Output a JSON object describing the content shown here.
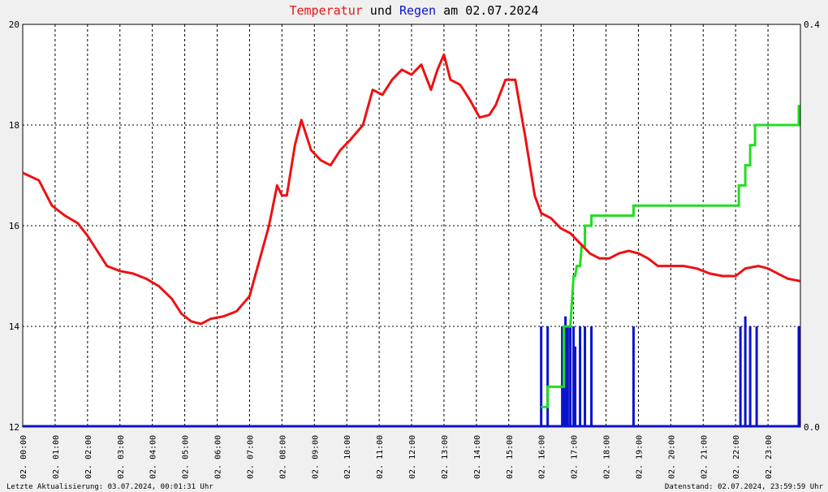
{
  "title": {
    "part1": "Temperatur",
    "part2": " und ",
    "part3": "Regen",
    "part4": " am 02.07.2024"
  },
  "colors": {
    "temperature": "#ee1111",
    "rain": "#0a14cc",
    "rain_cumulative": "#22dd22",
    "title_dark": "#000000",
    "frame": "#000000",
    "background": "#f0f0f0",
    "plot_bg": "#ffffff"
  },
  "footer": {
    "left": "Letzte Aktualisierung: 03.07.2024, 00:01:31 Uhr",
    "right": "Datenstand: 02.07.2024, 23:59:59 Uhr"
  },
  "chart_data": {
    "type": "line",
    "title": "Temperatur und Regen am 02.07.2024",
    "grid": true,
    "x_ticks": [
      "02. 00:00",
      "02. 01:00",
      "02. 02:00",
      "02. 03:00",
      "02. 04:00",
      "02. 05:00",
      "02. 06:00",
      "02. 07:00",
      "02. 08:00",
      "02. 09:00",
      "02. 10:00",
      "02. 11:00",
      "02. 12:00",
      "02. 13:00",
      "02. 14:00",
      "02. 15:00",
      "02. 16:00",
      "02. 17:00",
      "02. 18:00",
      "02. 19:00",
      "02. 20:00",
      "02. 21:00",
      "02. 22:00",
      "02. 23:00"
    ],
    "x_range_hours": [
      0,
      24
    ],
    "y_left": {
      "range": [
        12,
        20
      ],
      "ticks": [
        "12",
        "14",
        "16",
        "18",
        "20"
      ]
    },
    "y_right": {
      "range": [
        0,
        0.4
      ],
      "ticks": [
        "0.0",
        "0.4"
      ]
    },
    "series": [
      {
        "axis": "left",
        "style": "line",
        "points": [
          [
            0,
            17.05
          ],
          [
            0.5,
            16.9
          ],
          [
            0.9,
            16.4
          ],
          [
            1.3,
            16.2
          ],
          [
            1.7,
            16.05
          ],
          [
            2.0,
            15.8
          ],
          [
            2.3,
            15.5
          ],
          [
            2.6,
            15.2
          ],
          [
            3.0,
            15.1
          ],
          [
            3.4,
            15.05
          ],
          [
            3.8,
            14.95
          ],
          [
            4.2,
            14.8
          ],
          [
            4.6,
            14.55
          ],
          [
            4.9,
            14.25
          ],
          [
            5.2,
            14.1
          ],
          [
            5.5,
            14.05
          ],
          [
            5.8,
            14.15
          ],
          [
            6.2,
            14.2
          ],
          [
            6.6,
            14.3
          ],
          [
            7.0,
            14.6
          ],
          [
            7.3,
            15.3
          ],
          [
            7.6,
            16.0
          ],
          [
            7.85,
            16.8
          ],
          [
            8.0,
            16.6
          ],
          [
            8.15,
            16.6
          ],
          [
            8.4,
            17.6
          ],
          [
            8.6,
            18.1
          ],
          [
            8.9,
            17.5
          ],
          [
            9.2,
            17.3
          ],
          [
            9.5,
            17.2
          ],
          [
            9.8,
            17.5
          ],
          [
            10.1,
            17.7
          ],
          [
            10.5,
            18.0
          ],
          [
            10.8,
            18.7
          ],
          [
            11.1,
            18.6
          ],
          [
            11.4,
            18.9
          ],
          [
            11.7,
            19.1
          ],
          [
            12.0,
            19.0
          ],
          [
            12.3,
            19.2
          ],
          [
            12.6,
            18.7
          ],
          [
            12.8,
            19.1
          ],
          [
            13.0,
            19.4
          ],
          [
            13.2,
            18.9
          ],
          [
            13.5,
            18.8
          ],
          [
            13.8,
            18.5
          ],
          [
            14.1,
            18.15
          ],
          [
            14.4,
            18.2
          ],
          [
            14.6,
            18.4
          ],
          [
            14.9,
            18.9
          ],
          [
            15.2,
            18.9
          ],
          [
            15.5,
            17.8
          ],
          [
            15.8,
            16.6
          ],
          [
            16.0,
            16.25
          ],
          [
            16.3,
            16.15
          ],
          [
            16.6,
            15.95
          ],
          [
            16.9,
            15.85
          ],
          [
            17.2,
            15.65
          ],
          [
            17.5,
            15.45
          ],
          [
            17.8,
            15.35
          ],
          [
            18.1,
            15.35
          ],
          [
            18.4,
            15.45
          ],
          [
            18.7,
            15.5
          ],
          [
            19.0,
            15.45
          ],
          [
            19.3,
            15.35
          ],
          [
            19.6,
            15.2
          ],
          [
            20.0,
            15.2
          ],
          [
            20.4,
            15.2
          ],
          [
            20.8,
            15.15
          ],
          [
            21.2,
            15.05
          ],
          [
            21.6,
            15.0
          ],
          [
            22.0,
            15.0
          ],
          [
            22.3,
            15.15
          ],
          [
            22.7,
            15.2
          ],
          [
            23.0,
            15.15
          ],
          [
            23.3,
            15.05
          ],
          [
            23.6,
            14.95
          ],
          [
            23.99,
            14.9
          ]
        ]
      },
      {
        "axis": "right",
        "style": "step",
        "points": [
          [
            16.0,
            0.02
          ],
          [
            16.2,
            0.02
          ],
          [
            16.2,
            0.04
          ],
          [
            16.7,
            0.04
          ],
          [
            16.7,
            0.1
          ],
          [
            16.9,
            0.1
          ],
          [
            17.0,
            0.15
          ],
          [
            17.05,
            0.15
          ],
          [
            17.1,
            0.16
          ],
          [
            17.2,
            0.16
          ],
          [
            17.25,
            0.18
          ],
          [
            17.35,
            0.18
          ],
          [
            17.35,
            0.2
          ],
          [
            17.55,
            0.2
          ],
          [
            17.55,
            0.21
          ],
          [
            18.85,
            0.21
          ],
          [
            18.85,
            0.22
          ],
          [
            22.1,
            0.22
          ],
          [
            22.1,
            0.24
          ],
          [
            22.3,
            0.24
          ],
          [
            22.3,
            0.26
          ],
          [
            22.45,
            0.26
          ],
          [
            22.45,
            0.28
          ],
          [
            22.6,
            0.28
          ],
          [
            22.6,
            0.3
          ],
          [
            23.95,
            0.3
          ],
          [
            23.95,
            0.32
          ]
        ]
      },
      {
        "axis": "right",
        "style": "bars",
        "points": [
          [
            16.0,
            0.1
          ],
          [
            16.2,
            0.1
          ],
          [
            16.65,
            0.1
          ],
          [
            16.7,
            0.1
          ],
          [
            16.75,
            0.11
          ],
          [
            16.82,
            0.1
          ],
          [
            16.9,
            0.1
          ],
          [
            17.0,
            0.1
          ],
          [
            17.05,
            0.08
          ],
          [
            17.2,
            0.1
          ],
          [
            17.35,
            0.1
          ],
          [
            17.55,
            0.1
          ],
          [
            18.85,
            0.1
          ],
          [
            22.15,
            0.1
          ],
          [
            22.3,
            0.11
          ],
          [
            22.45,
            0.1
          ],
          [
            22.65,
            0.1
          ],
          [
            23.95,
            0.1
          ]
        ]
      }
    ]
  }
}
